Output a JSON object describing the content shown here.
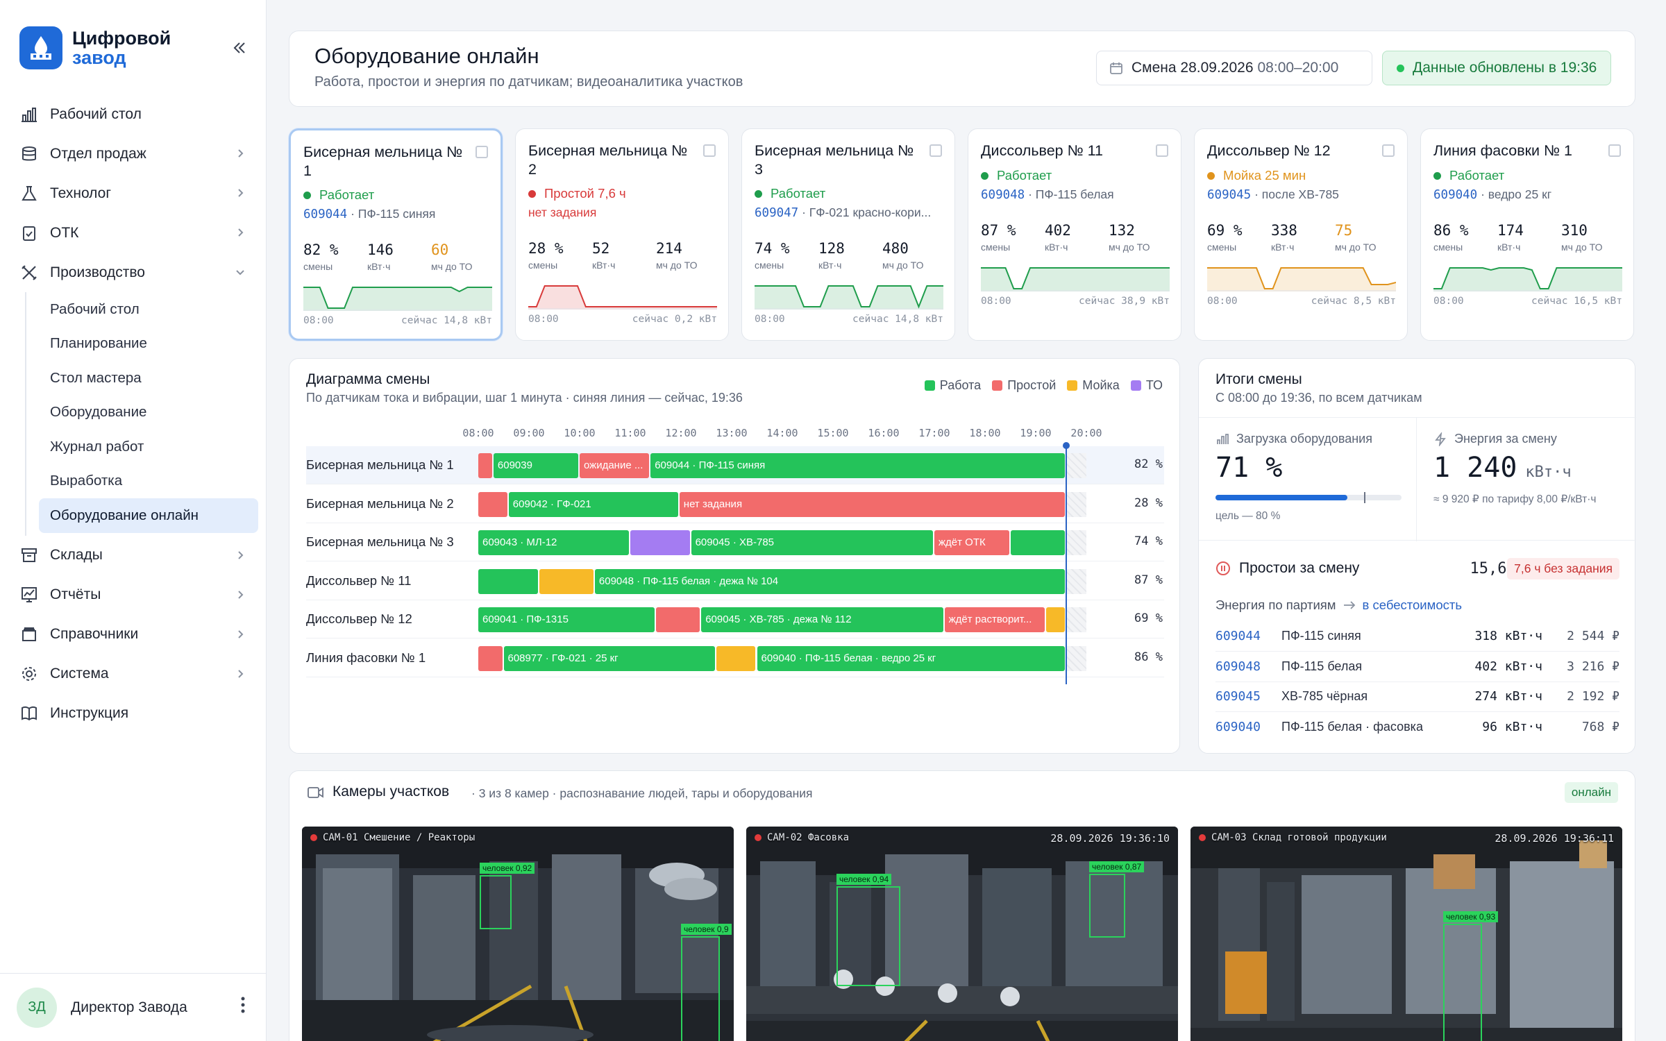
{
  "brand": {
    "line1": "Цифровой",
    "line2": "завод",
    "color": "#1f6ad8"
  },
  "sidebar": {
    "items": [
      {
        "label": "Рабочий стол",
        "icon": "bar-chart-icon"
      },
      {
        "label": "Отдел продаж",
        "icon": "database-icon"
      },
      {
        "label": "Технолог",
        "icon": "flask-icon"
      },
      {
        "label": "ОТК",
        "icon": "clipboard-check-icon"
      },
      {
        "label": "Производство",
        "icon": "tools-icon"
      },
      {
        "label": "Склады",
        "icon": "archive-icon"
      },
      {
        "label": "Отчёты",
        "icon": "report-chart-icon"
      },
      {
        "label": "Справочники",
        "icon": "book-stack-icon"
      },
      {
        "label": "Система",
        "icon": "gear-icon"
      },
      {
        "label": "Инструкция",
        "icon": "open-book-icon"
      }
    ],
    "sub_items": [
      "Рабочий стол",
      "Планирование",
      "Стол мастера",
      "Оборудование",
      "Журнал работ",
      "Выработка",
      "Оборудование онлайн"
    ],
    "active_sub": "Оборудование онлайн"
  },
  "user": {
    "initials": "ЗД",
    "name": "Директор Завода"
  },
  "header": {
    "title": "Оборудование онлайн",
    "subtitle": "Работа, простои и энергия по датчикам; видеоаналитика участков",
    "shift_label": "Смена 28.09.2026",
    "shift_time": "08:00–20:00",
    "updated": "Данные обновлены в 19:36"
  },
  "machines": [
    {
      "name": "Бисерная мельница № 1",
      "status": "Работает",
      "status_color": "#1f9d4c",
      "batch_code": "609044",
      "batch_desc": " · ПФ-115 синяя",
      "load": "82 %",
      "load_unit": "смены",
      "kwh": "146",
      "kwh_unit": "кВт·ч",
      "to": "60",
      "to_unit": "мч до ТО",
      "to_warn": true,
      "start": "08:00",
      "now": "сейчас 14,8 кВт",
      "spark_color": "#1f9d4c",
      "spark": [
        1,
        1,
        1,
        0,
        0,
        0,
        1,
        1,
        1,
        1,
        1,
        1,
        1,
        1,
        1,
        1,
        1,
        1,
        1,
        0.8,
        1,
        1,
        1,
        1
      ]
    },
    {
      "name": "Бисерная мельница № 2",
      "status": "Простой 7,6 ч",
      "status_color": "#d83a3a",
      "note": "нет задания",
      "load": "28 %",
      "load_unit": "смены",
      "kwh": "52",
      "kwh_unit": "кВт·ч",
      "to": "214",
      "to_unit": "мч до ТО",
      "to_warn": false,
      "start": "08:00",
      "now": "сейчас 0,2 кВт",
      "spark_color": "#d83a3a",
      "spark": [
        0,
        0,
        1,
        1,
        1,
        1,
        1,
        0,
        0,
        0,
        0,
        0,
        0,
        0,
        0,
        0,
        0,
        0,
        0,
        0,
        0,
        0,
        0,
        0
      ]
    },
    {
      "name": "Бисерная мельница № 3",
      "status": "Работает",
      "status_color": "#1f9d4c",
      "batch_code": "609047",
      "batch_desc": " · ГФ-021 красно-кори...",
      "load": "74 %",
      "load_unit": "смены",
      "kwh": "128",
      "kwh_unit": "кВт·ч",
      "to": "480",
      "to_unit": "мч до ТО",
      "to_warn": false,
      "start": "08:00",
      "now": "сейчас 14,8 кВт",
      "spark_color": "#1f9d4c",
      "spark": [
        1,
        1,
        1,
        1,
        1,
        1,
        0,
        0,
        0,
        1,
        1,
        1,
        1,
        0,
        0,
        1,
        1,
        1,
        1,
        1,
        0,
        1,
        1,
        1
      ]
    },
    {
      "name": "Диссольвер № 11",
      "status": "Работает",
      "status_color": "#1f9d4c",
      "batch_code": "609048",
      "batch_desc": " · ПФ-115 белая",
      "load": "87 %",
      "load_unit": "смены",
      "kwh": "402",
      "kwh_unit": "кВт·ч",
      "to": "132",
      "to_unit": "мч до ТО",
      "to_warn": false,
      "start": "08:00",
      "now": "сейчас 38,9 кВт",
      "spark_color": "#1f9d4c",
      "spark": [
        1,
        1,
        1,
        1,
        0,
        0,
        1,
        1,
        1,
        1,
        1,
        1,
        1,
        1,
        1,
        1,
        1,
        1,
        1,
        1,
        1,
        1,
        1,
        1
      ]
    },
    {
      "name": "Диссольвер № 12",
      "status": "Мойка 25 мин",
      "status_color": "#e0931c",
      "batch_code": "609045",
      "batch_desc": " · после ХВ-785",
      "load": "69 %",
      "load_unit": "смены",
      "kwh": "338",
      "kwh_unit": "кВт·ч",
      "to": "75",
      "to_unit": "мч до ТО",
      "to_warn": true,
      "start": "08:00",
      "now": "сейчас 8,5 кВт",
      "spark_color": "#e0931c",
      "spark": [
        1,
        1,
        1,
        1,
        1,
        1,
        1,
        0,
        0,
        1,
        1,
        1,
        1,
        1,
        1,
        1,
        1,
        1,
        1,
        1,
        0.2,
        0.2,
        0.2,
        0.3
      ]
    },
    {
      "name": "Линия фасовки № 1",
      "status": "Работает",
      "status_color": "#1f9d4c",
      "batch_code": "609040",
      "batch_desc": " · ведро 25 кг",
      "load": "86 %",
      "load_unit": "смены",
      "kwh": "174",
      "kwh_unit": "кВт·ч",
      "to": "310",
      "to_unit": "мч до ТО",
      "to_warn": false,
      "start": "08:00",
      "now": "сейчас 16,5 кВт",
      "spark_color": "#1f9d4c",
      "spark": [
        0,
        0,
        1,
        1,
        1,
        1,
        1,
        0.9,
        1,
        1,
        1,
        1,
        0.9,
        0,
        0,
        1,
        1,
        1,
        1,
        1,
        1,
        1,
        1,
        1
      ]
    }
  ],
  "gantt": {
    "title": "Диаграмма смены",
    "subtitle": "По датчикам тока и вибрации, шаг 1 минута · синяя линия — сейчас, 19:36",
    "legend": [
      {
        "label": "Работа",
        "color": "#24c35a"
      },
      {
        "label": "Простой",
        "color": "#f26b6b"
      },
      {
        "label": "Мойка",
        "color": "#f7b928"
      },
      {
        "label": "ТО",
        "color": "#a47cf2"
      }
    ],
    "ticks": [
      "08:00",
      "09:00",
      "10:00",
      "11:00",
      "12:00",
      "13:00",
      "14:00",
      "15:00",
      "16:00",
      "17:00",
      "18:00",
      "19:00",
      "20:00"
    ],
    "now": 19.6,
    "rows": [
      {
        "label": "Бисерная мельница № 1",
        "pct": "82 %",
        "segments": [
          {
            "type": "idle",
            "from": 8.0,
            "to": 8.3,
            "text": ""
          },
          {
            "type": "work",
            "from": 8.3,
            "to": 10.0,
            "text": "609039"
          },
          {
            "type": "idle",
            "from": 10.0,
            "to": 11.4,
            "text": "ожидание ..."
          },
          {
            "type": "work",
            "from": 11.4,
            "to": 19.6,
            "text": "609044 · ПФ-115 синяя"
          }
        ]
      },
      {
        "label": "Бисерная мельница № 2",
        "pct": "28 %",
        "segments": [
          {
            "type": "idle",
            "from": 8.0,
            "to": 8.6,
            "text": ""
          },
          {
            "type": "work",
            "from": 8.6,
            "to": 11.97,
            "text": "609042 · ГФ-021"
          },
          {
            "type": "idle",
            "from": 11.97,
            "to": 19.6,
            "text": "нет задания"
          }
        ]
      },
      {
        "label": "Бисерная мельница № 3",
        "pct": "74 %",
        "segments": [
          {
            "type": "work",
            "from": 8.0,
            "to": 11.0,
            "text": "609043 · МЛ-12"
          },
          {
            "type": "to",
            "from": 11.0,
            "to": 12.2,
            "text": ""
          },
          {
            "type": "work",
            "from": 12.2,
            "to": 17.0,
            "text": "609045 · ХВ-785"
          },
          {
            "type": "idle",
            "from": 17.0,
            "to": 18.5,
            "text": "ждёт ОТК"
          },
          {
            "type": "work",
            "from": 18.5,
            "to": 19.6,
            "text": ""
          }
        ]
      },
      {
        "label": "Диссольвер № 11",
        "pct": "87 %",
        "segments": [
          {
            "type": "work",
            "from": 8.0,
            "to": 9.2,
            "text": ""
          },
          {
            "type": "wash",
            "from": 9.2,
            "to": 10.3,
            "text": ""
          },
          {
            "type": "work",
            "from": 10.3,
            "to": 19.6,
            "text": "609048 · ПФ-115 белая · дежа № 104"
          }
        ]
      },
      {
        "label": "Диссольвер № 12",
        "pct": "69 %",
        "segments": [
          {
            "type": "work",
            "from": 8.0,
            "to": 11.5,
            "text": "609041 · ПФ-1315"
          },
          {
            "type": "idle",
            "from": 11.5,
            "to": 12.4,
            "text": ""
          },
          {
            "type": "work",
            "from": 12.4,
            "to": 17.2,
            "text": "609045 · ХВ-785 · дежа № 112"
          },
          {
            "type": "idle",
            "from": 17.2,
            "to": 19.2,
            "text": "ждёт растворит..."
          },
          {
            "type": "wash",
            "from": 19.2,
            "to": 19.6,
            "text": ""
          }
        ]
      },
      {
        "label": "Линия фасовки № 1",
        "pct": "86 %",
        "segments": [
          {
            "type": "idle",
            "from": 8.0,
            "to": 8.5,
            "text": ""
          },
          {
            "type": "work",
            "from": 8.5,
            "to": 12.7,
            "text": "608977 · ГФ-021 · 25 кг"
          },
          {
            "type": "wash",
            "from": 12.7,
            "to": 13.5,
            "text": ""
          },
          {
            "type": "work",
            "from": 13.5,
            "to": 19.6,
            "text": "609040 · ПФ-115 белая · ведро 25 кг"
          }
        ]
      }
    ]
  },
  "summary": {
    "title": "Итоги смены",
    "subtitle": "С 08:00 до 19:36, по всем датчикам",
    "load_label": "Загрузка оборудования",
    "load_value": "71 %",
    "load_fraction": 0.71,
    "target_fraction": 0.8,
    "load_note": "цель — 80 %",
    "energy_label": "Энергия за смену",
    "energy_value": "1 240",
    "energy_unit": "кВт·ч",
    "energy_note": "≈ 9 920 ₽ по тарифу 8,00 ₽/кВт·ч",
    "idle_label": "Простои за смену",
    "idle_value": "15,6 ч",
    "idle_badge": "7,6 ч без задания",
    "energy_batches_label": "Энергия по партиям",
    "energy_batches_link": "в себестоимость",
    "batches": [
      {
        "code": "609044",
        "name": "ПФ-115 синяя",
        "kwh": "318 кВт·ч",
        "rub": "2 544 ₽"
      },
      {
        "code": "609048",
        "name": "ПФ-115 белая",
        "kwh": "402 кВт·ч",
        "rub": "3 216 ₽"
      },
      {
        "code": "609045",
        "name": "ХВ-785 чёрная",
        "kwh": "274 кВт·ч",
        "rub": "2 192 ₽"
      },
      {
        "code": "609040",
        "name": "ПФ-115 белая · фасовка",
        "kwh": "96 кВт·ч",
        "rub": "768 ₽"
      }
    ]
  },
  "cameras": {
    "title": "Камеры участков",
    "subtitle": "· 3 из 8 камер · распознавание людей, тары и оборудования",
    "status": "онлайн",
    "feeds": [
      {
        "label": "CAM-01 Смешение / Реакторы",
        "timestamp": "",
        "detections": [
          "человек 0,92",
          "человек 0,9"
        ]
      },
      {
        "label": "CAM-02 Фасовка",
        "timestamp": "28.09.2026 19:36:10",
        "detections": [
          "человек 0,94",
          "человек 0,87"
        ]
      },
      {
        "label": "CAM-03 Склад готовой продукции",
        "timestamp": "28.09.2026 19:36:11",
        "detections": [
          "человек 0,93"
        ]
      }
    ]
  }
}
